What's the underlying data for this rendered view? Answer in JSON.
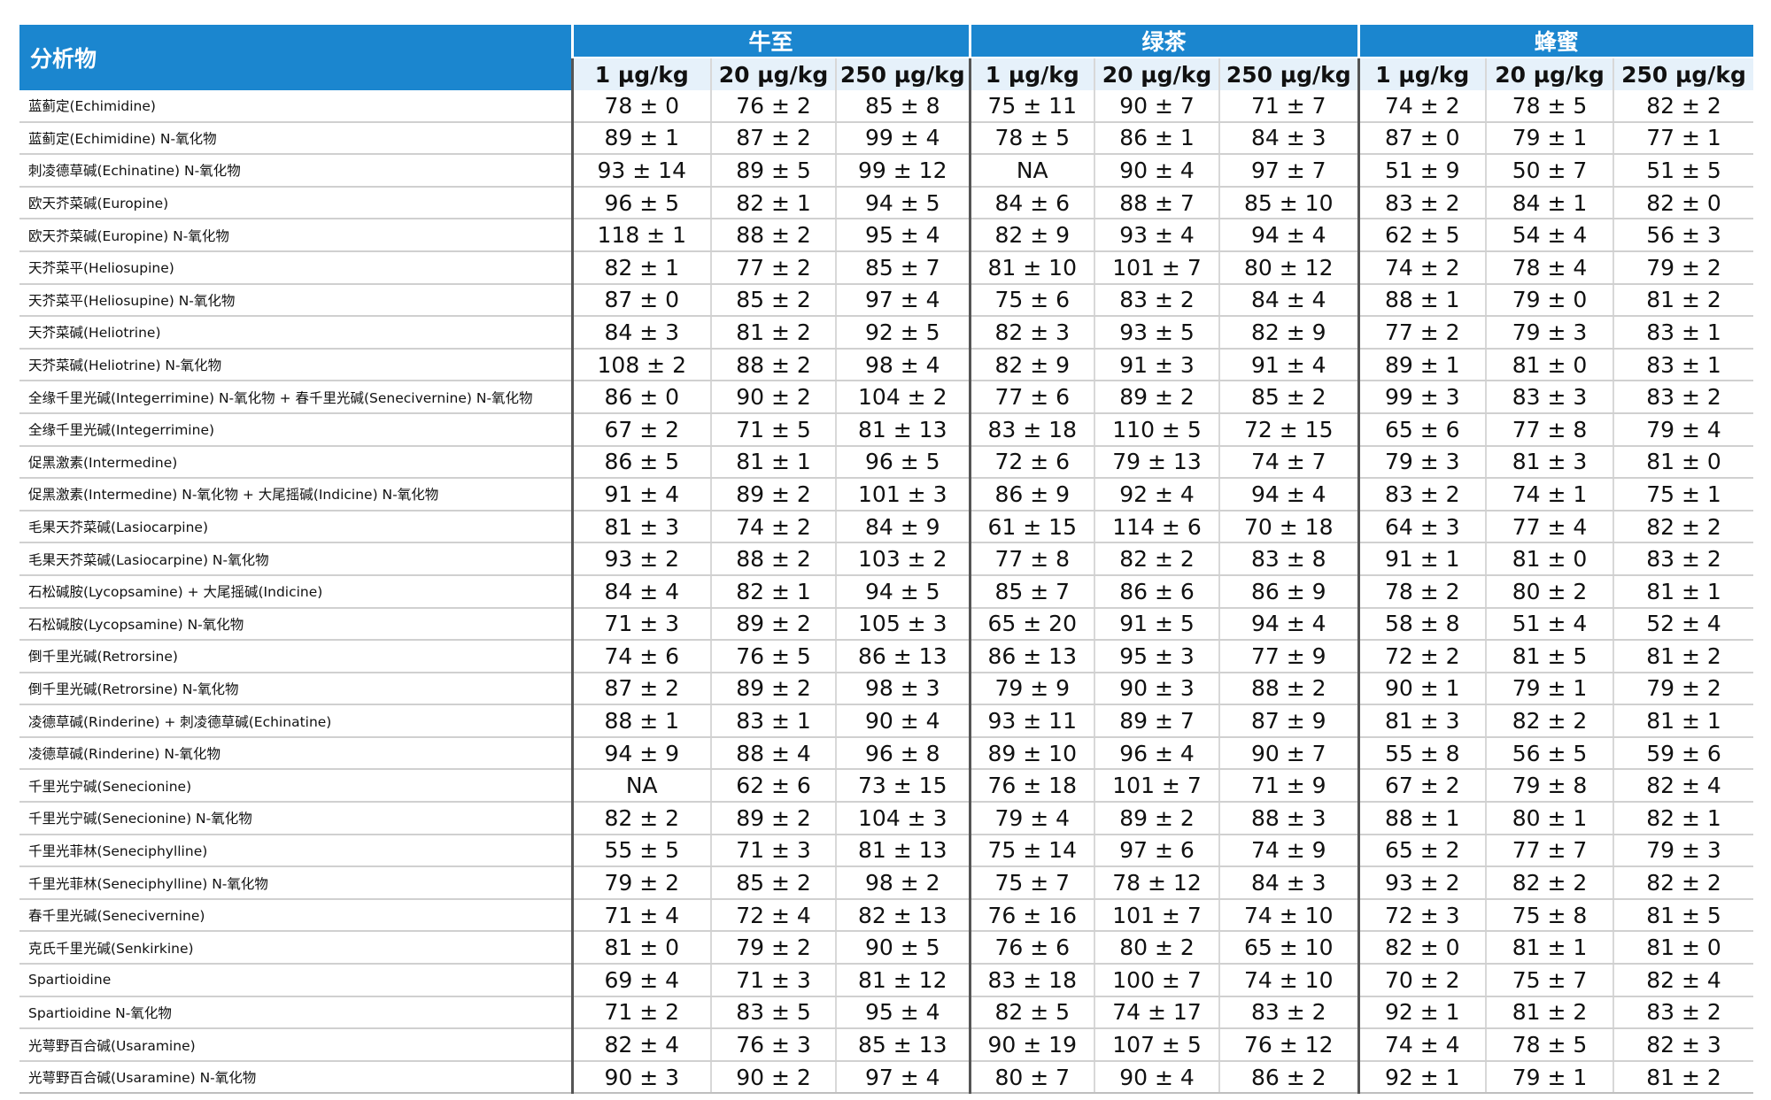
{
  "table": {
    "analyte_header": "分析物",
    "groups": [
      "牛至",
      "绿茶",
      "蜂蜜"
    ],
    "levels": [
      "1 µg/kg",
      "20 µg/kg",
      "250 µg/kg"
    ],
    "rows": [
      {
        "name": "蓝蓟定(Echimidine)",
        "values": [
          "78 ± 0",
          "76 ± 2",
          "85 ± 8",
          "75 ± 11",
          "90 ± 7",
          "71 ± 7",
          "74 ± 2",
          "78 ± 5",
          "82 ± 2"
        ]
      },
      {
        "name": "蓝蓟定(Echimidine) N-氧化物",
        "values": [
          "89 ± 1",
          "87 ± 2",
          "99 ± 4",
          "78 ± 5",
          "86 ± 1",
          "84 ± 3",
          "87 ± 0",
          "79 ± 1",
          "77 ± 1"
        ]
      },
      {
        "name": "刺凌德草碱(Echinatine) N-氧化物",
        "values": [
          "93 ± 14",
          "89 ± 5",
          "99 ± 12",
          "NA",
          "90 ± 4",
          "97 ± 7",
          "51 ± 9",
          "50 ± 7",
          "51 ± 5"
        ]
      },
      {
        "name": "欧天芥菜碱(Europine)",
        "values": [
          "96 ± 5",
          "82 ± 1",
          "94 ± 5",
          "84 ± 6",
          "88 ± 7",
          "85 ± 10",
          "83 ± 2",
          "84 ± 1",
          "82 ± 0"
        ]
      },
      {
        "name": "欧天芥菜碱(Europine) N-氧化物",
        "values": [
          "118 ± 1",
          "88 ± 2",
          "95 ± 4",
          "82 ± 9",
          "93 ± 4",
          "94 ± 4",
          "62 ± 5",
          "54 ± 4",
          "56 ± 3"
        ]
      },
      {
        "name": "天芥菜平(Heliosupine)",
        "values": [
          "82 ± 1",
          "77 ± 2",
          "85 ± 7",
          "81 ± 10",
          "101 ± 7",
          "80 ± 12",
          "74 ± 2",
          "78 ± 4",
          "79 ± 2"
        ]
      },
      {
        "name": "天芥菜平(Heliosupine) N-氧化物",
        "values": [
          "87 ± 0",
          "85 ± 2",
          "97 ± 4",
          "75 ± 6",
          "83 ± 2",
          "84 ± 4",
          "88 ± 1",
          "79 ± 0",
          "81 ± 2"
        ]
      },
      {
        "name": "天芥菜碱(Heliotrine)",
        "values": [
          "84 ± 3",
          "81 ± 2",
          "92 ± 5",
          "82 ± 3",
          "93 ± 5",
          "82 ± 9",
          "77 ± 2",
          "79 ± 3",
          "83 ± 1"
        ]
      },
      {
        "name": "天芥菜碱(Heliotrine) N-氧化物",
        "values": [
          "108 ± 2",
          "88 ± 2",
          "98 ± 4",
          "82 ± 9",
          "91 ± 3",
          "91 ± 4",
          "89 ± 1",
          "81 ± 0",
          "83 ± 1"
        ]
      },
      {
        "name": "全缘千里光碱(Integerrimine) N-氧化物 + 春千里光碱(Senecivernine) N-氧化物",
        "values": [
          "86 ± 0",
          "90 ± 2",
          "104 ± 2",
          "77 ± 6",
          "89 ± 2",
          "85 ± 2",
          "99 ± 3",
          "83 ± 3",
          "83 ± 2"
        ]
      },
      {
        "name": "全缘千里光碱(Integerrimine)",
        "values": [
          "67 ± 2",
          "71 ± 5",
          "81 ± 13",
          "83 ± 18",
          "110 ± 5",
          "72 ± 15",
          "65 ± 6",
          "77 ± 8",
          "79 ± 4"
        ]
      },
      {
        "name": "促黑激素(Intermedine)",
        "values": [
          "86 ± 5",
          "81 ± 1",
          "96 ± 5",
          "72 ± 6",
          "79 ± 13",
          "74 ± 7",
          "79 ± 3",
          "81 ± 3",
          "81 ± 0"
        ]
      },
      {
        "name": "促黑激素(Intermedine) N-氧化物 + 大尾摇碱(Indicine) N-氧化物",
        "values": [
          "91 ± 4",
          "89 ± 2",
          "101 ± 3",
          "86 ± 9",
          "92 ± 4",
          "94 ± 4",
          "83 ± 2",
          "74 ± 1",
          "75 ± 1"
        ]
      },
      {
        "name": "毛果天芥菜碱(Lasiocarpine)",
        "values": [
          "81 ± 3",
          "74 ± 2",
          "84 ± 9",
          "61 ± 15",
          "114 ± 6",
          "70 ± 18",
          "64 ± 3",
          "77 ± 4",
          "82 ± 2"
        ]
      },
      {
        "name": "毛果天芥菜碱(Lasiocarpine) N-氧化物",
        "values": [
          "93 ± 2",
          "88 ± 2",
          "103 ± 2",
          "77 ± 8",
          "82 ± 2",
          "83 ± 8",
          "91 ± 1",
          "81 ± 0",
          "83 ± 2"
        ]
      },
      {
        "name": "石松碱胺(Lycopsamine) + 大尾摇碱(Indicine)",
        "values": [
          "84 ± 4",
          "82 ± 1",
          "94 ± 5",
          "85 ± 7",
          "86 ± 6",
          "86 ± 9",
          "78 ± 2",
          "80 ± 2",
          "81 ± 1"
        ]
      },
      {
        "name": "石松碱胺(Lycopsamine) N-氧化物",
        "values": [
          "71 ± 3",
          "89 ± 2",
          "105 ± 3",
          "65 ± 20",
          "91 ± 5",
          "94 ± 4",
          "58 ± 8",
          "51 ± 4",
          "52 ± 4"
        ]
      },
      {
        "name": "倒千里光碱(Retrorsine)",
        "values": [
          "74 ± 6",
          "76 ± 5",
          "86 ± 13",
          "86 ± 13",
          "95 ± 3",
          "77 ± 9",
          "72 ± 2",
          "81 ± 5",
          "81 ± 2"
        ]
      },
      {
        "name": "倒千里光碱(Retrorsine) N-氧化物",
        "values": [
          "87 ± 2",
          "89 ± 2",
          "98 ± 3",
          "79 ± 9",
          "90 ± 3",
          "88 ± 2",
          "90 ± 1",
          "79 ± 1",
          "79 ± 2"
        ]
      },
      {
        "name": "凌德草碱(Rinderine) + 刺凌德草碱(Echinatine)",
        "values": [
          "88 ± 1",
          "83 ± 1",
          "90 ± 4",
          "93 ± 11",
          "89 ± 7",
          "87 ± 9",
          "81 ± 3",
          "82 ± 2",
          "81 ± 1"
        ]
      },
      {
        "name": "凌德草碱(Rinderine) N-氧化物",
        "values": [
          "94 ± 9",
          "88 ± 4",
          "96 ± 8",
          "89 ± 10",
          "96 ± 4",
          "90 ± 7",
          "55 ± 8",
          "56 ± 5",
          "59 ± 6"
        ]
      },
      {
        "name": "千里光宁碱(Senecionine)",
        "values": [
          "NA",
          "62 ± 6",
          "73 ± 15",
          "76 ± 18",
          "101 ± 7",
          "71 ± 9",
          "67 ± 2",
          "79 ± 8",
          "82 ± 4"
        ]
      },
      {
        "name": "千里光宁碱(Senecionine) N-氧化物",
        "values": [
          "82 ± 2",
          "89 ± 2",
          "104 ± 3",
          "79 ± 4",
          "89 ± 2",
          "88 ± 3",
          "88 ± 1",
          "80 ± 1",
          "82 ± 1"
        ]
      },
      {
        "name": "千里光菲林(Seneciphylline)",
        "values": [
          "55 ± 5",
          "71 ± 3",
          "81 ± 13",
          "75 ± 14",
          "97 ± 6",
          "74 ± 9",
          "65 ± 2",
          "77 ± 7",
          "79 ± 3"
        ]
      },
      {
        "name": "千里光菲林(Seneciphylline) N-氧化物",
        "values": [
          "79 ± 2",
          "85 ± 2",
          "98 ± 2",
          "75 ± 7",
          "78 ± 12",
          "84 ± 3",
          "93 ± 2",
          "82 ± 2",
          "82 ± 2"
        ]
      },
      {
        "name": "春千里光碱(Senecivernine)",
        "values": [
          "71 ± 4",
          "72 ± 4",
          "82 ± 13",
          "76 ± 16",
          "101 ± 7",
          "74 ± 10",
          "72 ± 3",
          "75 ± 8",
          "81 ± 5"
        ]
      },
      {
        "name": "克氏千里光碱(Senkirkine)",
        "values": [
          "81 ± 0",
          "79 ± 2",
          "90 ± 5",
          "76 ± 6",
          "80 ± 2",
          "65 ± 10",
          "82 ± 0",
          "81 ± 1",
          "81 ± 0"
        ]
      },
      {
        "name": "Spartioidine",
        "values": [
          "69 ± 4",
          "71 ± 3",
          "81 ± 12",
          "83 ± 18",
          "100 ± 7",
          "74 ± 10",
          "70 ± 2",
          "75 ± 7",
          "82 ± 4"
        ]
      },
      {
        "name": "Spartioidine N-氧化物",
        "values": [
          "71 ± 2",
          "83 ± 5",
          "95 ± 4",
          "82 ± 5",
          "74 ± 17",
          "83 ± 2",
          "92 ± 1",
          "81 ± 2",
          "83 ± 2"
        ]
      },
      {
        "name": "光萼野百合碱(Usaramine)",
        "values": [
          "82 ± 4",
          "76 ± 3",
          "85 ± 13",
          "90 ± 19",
          "107 ± 5",
          "76 ± 12",
          "74 ± 4",
          "78 ± 5",
          "82 ± 3"
        ]
      },
      {
        "name": "光萼野百合碱(Usaramine) N-氧化物",
        "values": [
          "90 ± 3",
          "90 ± 2",
          "97 ± 4",
          "80 ± 7",
          "90 ± 4",
          "86 ± 2",
          "92 ± 1",
          "79 ± 1",
          "81 ± 2"
        ]
      }
    ]
  }
}
